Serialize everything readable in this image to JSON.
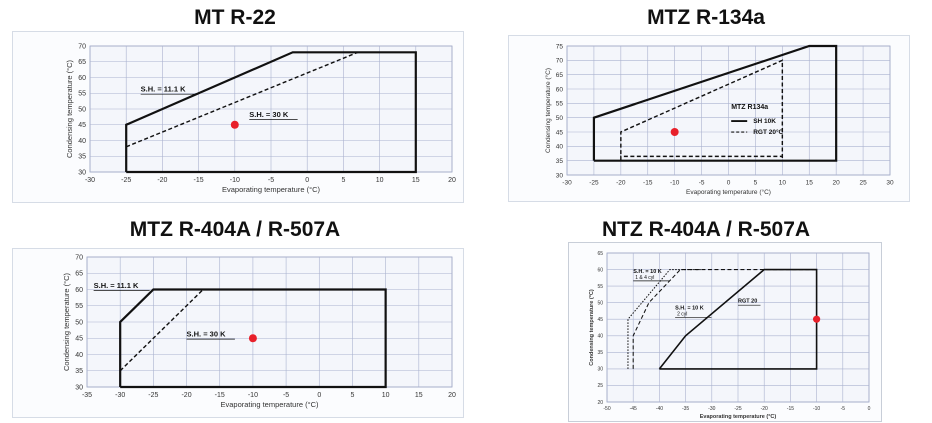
{
  "colors": {
    "grid": "#aab2cf",
    "envelope": "#111111",
    "marker": "#e8202a"
  },
  "chart_data": [
    {
      "type": "line",
      "title": "MT R-22",
      "xlabel": "Evaporating temperature (°C)",
      "ylabel": "Condensing temperature (°C)",
      "xlim": [
        -30,
        20
      ],
      "ylim": [
        30,
        70
      ],
      "xticks": [
        -30,
        -25,
        -20,
        -15,
        -10,
        -5,
        0,
        5,
        10,
        15,
        20
      ],
      "yticks": [
        30,
        35,
        40,
        45,
        50,
        55,
        60,
        65,
        70
      ],
      "xtick_labels": [
        "-30",
        "-25",
        "-20",
        "-15",
        "-10",
        "-5",
        "0",
        "5",
        "10",
        "15",
        "20"
      ],
      "ytick_labels": [
        "30",
        "35",
        "40",
        "45",
        "50",
        "55",
        "60",
        "65",
        "70"
      ],
      "grid": true,
      "series": [
        {
          "name": "",
          "style": "solid",
          "x": [
            -25,
            -25,
            -2,
            15,
            15,
            -25
          ],
          "y": [
            30,
            45,
            68,
            68,
            30,
            30
          ]
        },
        {
          "name": "",
          "style": "dashed",
          "x": [
            -25,
            7
          ],
          "y": [
            38,
            68
          ]
        }
      ],
      "points": [
        {
          "x": -10,
          "y": 45
        }
      ],
      "annotations": [
        {
          "text": "S.H. = 11.1 K",
          "x": -23,
          "y": 55.5
        },
        {
          "text": "S.H. = 30 K",
          "x": -8,
          "y": 47.5
        }
      ]
    },
    {
      "type": "line",
      "title": "MTZ R-134a",
      "xlabel": "Evaporating temperature (°C)",
      "ylabel": "Condensing temperature (°C)",
      "xlim": [
        -30,
        30
      ],
      "ylim": [
        30,
        75
      ],
      "xticks": [
        -30,
        -25,
        -20,
        -15,
        -10,
        -5,
        0,
        5,
        10,
        15,
        20,
        25,
        30
      ],
      "yticks": [
        30,
        35,
        40,
        45,
        50,
        55,
        60,
        65,
        70,
        75
      ],
      "xtick_labels": [
        "-30",
        "-25",
        "-20",
        "-15",
        "-10",
        "-5",
        "0",
        "5",
        "10",
        "15",
        "20",
        "25",
        "30"
      ],
      "ytick_labels": [
        "30",
        "35",
        "40",
        "45",
        "50",
        "55",
        "60",
        "65",
        "70",
        "75"
      ],
      "grid": true,
      "series": [
        {
          "name": "SH 10K",
          "style": "solid",
          "x": [
            -25,
            -25,
            15,
            20,
            20,
            -25
          ],
          "y": [
            35,
            50,
            75,
            75,
            35,
            35
          ]
        },
        {
          "name": "RGT 20°C",
          "style": "dashed",
          "x": [
            -20,
            -20,
            10,
            10,
            -20,
            -20,
            10
          ],
          "y": [
            35,
            45,
            70,
            35,
            35,
            36.5,
            36.5
          ]
        }
      ],
      "points": [
        {
          "x": -10,
          "y": 45
        }
      ],
      "legend": {
        "title": "MTZ R134a",
        "position": "center-right"
      }
    },
    {
      "type": "line",
      "title": "MTZ R-404A / R-507A",
      "xlabel": "Evaporating temperature (°C)",
      "ylabel": "Condensing temperature (°C)",
      "xlim": [
        -35,
        20
      ],
      "ylim": [
        30,
        70
      ],
      "xticks": [
        -35,
        -30,
        -25,
        -20,
        -15,
        -10,
        -5,
        0,
        5,
        10,
        15,
        20
      ],
      "yticks": [
        30,
        35,
        40,
        45,
        50,
        55,
        60,
        65,
        70
      ],
      "xtick_labels": [
        "-35",
        "-30",
        "-25",
        "-20",
        "-15",
        "-10",
        "-5",
        "0",
        "5",
        "10",
        "15",
        "20"
      ],
      "ytick_labels": [
        "30",
        "35",
        "40",
        "45",
        "50",
        "55",
        "60",
        "65",
        "70"
      ],
      "grid": true,
      "series": [
        {
          "name": "",
          "style": "solid",
          "x": [
            -30,
            -30,
            -25,
            10,
            10,
            -30
          ],
          "y": [
            30,
            50,
            60,
            60,
            30,
            30
          ]
        },
        {
          "name": "",
          "style": "dashed",
          "x": [
            -30,
            -17.5
          ],
          "y": [
            35,
            60
          ]
        }
      ],
      "points": [
        {
          "x": -10,
          "y": 45
        }
      ],
      "annotations": [
        {
          "text": "S.H. = 11.1 K",
          "x": -34,
          "y": 60.5
        },
        {
          "text": "S.H. = 30 K",
          "x": -20,
          "y": 45.5
        }
      ]
    },
    {
      "type": "line",
      "title": "NTZ R-404A / R-507A",
      "xlabel": "Evaporating temperature (°C)",
      "ylabel": "Condensing temperature (°C)",
      "xlim": [
        -50,
        0
      ],
      "ylim": [
        20,
        65
      ],
      "xticks": [
        -50,
        -45,
        -40,
        -35,
        -30,
        -25,
        -20,
        -15,
        -10,
        -5,
        0
      ],
      "yticks": [
        20,
        25,
        30,
        35,
        40,
        45,
        50,
        55,
        60,
        65
      ],
      "xtick_labels": [
        "-50",
        "-45",
        "-40",
        "-35",
        "-30",
        "-25",
        "-20",
        "-15",
        "-10",
        "-5",
        "0"
      ],
      "ytick_labels": [
        "20",
        "25",
        "30",
        "35",
        "40",
        "45",
        "50",
        "55",
        "60",
        "65"
      ],
      "grid": true,
      "series": [
        {
          "name": "RGT 20",
          "style": "solid",
          "x": [
            -40,
            -35,
            -20,
            -10,
            -10,
            -40
          ],
          "y": [
            30,
            40,
            60,
            60,
            30,
            30
          ]
        },
        {
          "name": "S.H. = 10 K 2 cyl",
          "style": "dashed",
          "x": [
            -45,
            -45,
            -42,
            -36,
            -10
          ],
          "y": [
            30,
            40,
            50,
            60,
            60
          ]
        },
        {
          "name": "S.H. = 10 K 1 & 4 cyl",
          "style": "dotted",
          "x": [
            -46,
            -46,
            -38,
            -32
          ],
          "y": [
            30,
            45,
            60,
            60
          ]
        }
      ],
      "points": [
        {
          "x": -10,
          "y": 45
        }
      ],
      "annotations": [
        {
          "text": "S.H. = 10 K",
          "sub": "1 & 4 cyl",
          "x": -45,
          "y": 59
        },
        {
          "text": "S.H. = 10 K",
          "sub": "2 cyl",
          "x": -37,
          "y": 48
        },
        {
          "text": "RGT 20",
          "x": -25,
          "y": 50
        }
      ]
    }
  ]
}
